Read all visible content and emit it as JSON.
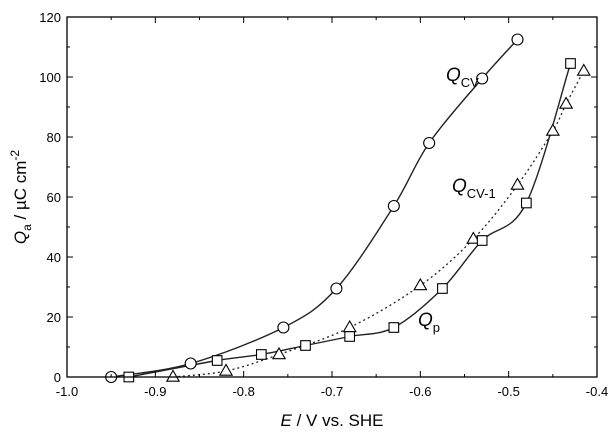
{
  "chart_data": {
    "type": "scatter",
    "xlabel_italic": "E",
    "xlabel_rest": " / V vs. SHE",
    "ylabel_base": "Q",
    "ylabel_sub": "a",
    "ylabel_rest": " / µC cm",
    "ylabel_sup": "-2",
    "xlim": [
      -1.0,
      -0.4
    ],
    "ylim": [
      0,
      120
    ],
    "xticks": [
      "-1.0",
      "-0.9",
      "-0.8",
      "-0.7",
      "-0.6",
      "-0.5",
      "-0.4"
    ],
    "yticks": [
      "0",
      "20",
      "40",
      "60",
      "80",
      "100",
      "120"
    ],
    "grid": false,
    "series": [
      {
        "name": "Q_CV",
        "label_base": "Q",
        "label_sub": "CV",
        "marker": "circle",
        "line": "solid",
        "x": [
          -0.95,
          -0.86,
          -0.755,
          -0.695,
          -0.63,
          -0.59,
          -0.53,
          -0.49
        ],
        "y": [
          0,
          4.5,
          16.5,
          29.5,
          57,
          78,
          99.5,
          112.5
        ]
      },
      {
        "name": "Q_CV-1",
        "label_base": "Q",
        "label_sub": "CV-1",
        "marker": "triangle",
        "line": "dotted",
        "x": [
          -0.88,
          -0.82,
          -0.76,
          -0.68,
          -0.6,
          -0.54,
          -0.49,
          -0.45,
          -0.435,
          -0.415
        ],
        "y": [
          0,
          2,
          7.5,
          16.5,
          30.5,
          46,
          64,
          82,
          91,
          102
        ]
      },
      {
        "name": "Q_p",
        "label_base": "Q",
        "label_sub": "p",
        "marker": "square",
        "line": "solid",
        "x": [
          -0.93,
          -0.83,
          -0.78,
          -0.73,
          -0.68,
          -0.63,
          -0.575,
          -0.53,
          -0.48,
          -0.43
        ],
        "y": [
          0,
          5.5,
          7.5,
          10.5,
          13.5,
          16.5,
          29.5,
          45.5,
          58,
          104.5
        ]
      }
    ]
  }
}
